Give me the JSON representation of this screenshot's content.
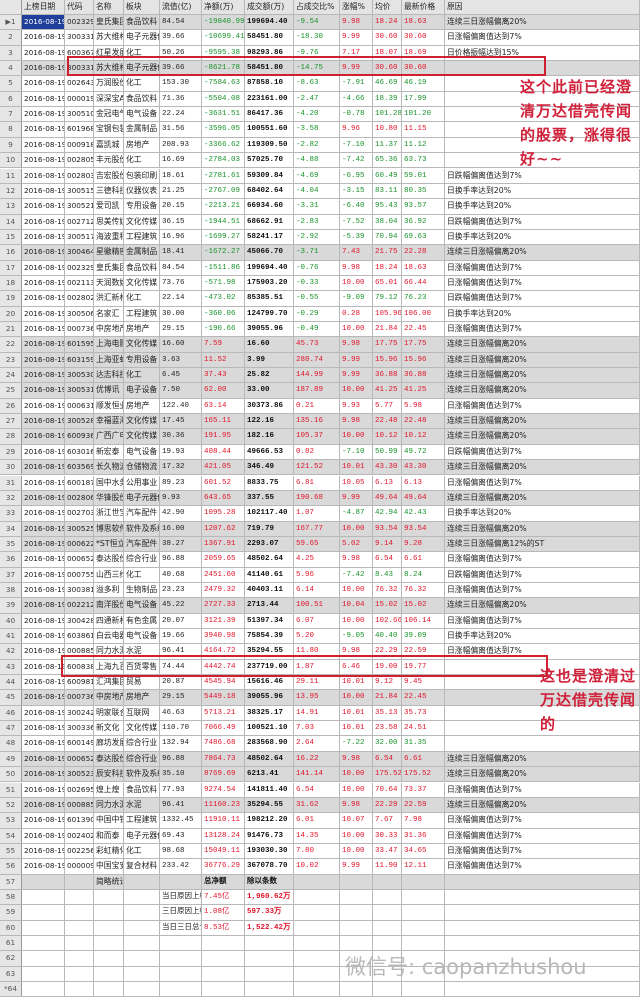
{
  "colors": {
    "positive": "#e0142a",
    "negative": "#18922a",
    "annotation": "#d0203a",
    "selected_row": "#d9d9d9"
  },
  "header": [
    "",
    "上榜日期",
    "代码",
    "名称",
    "板块",
    "流值(亿)",
    "净额(万)",
    "成交额(万)",
    "占成交比%",
    "涨幅%",
    "均价",
    "最新价格",
    "原因"
  ],
  "rows": [
    [
      "▶1",
      "2016-08-19",
      "002329",
      "皇氏集团",
      "食品饮料",
      "84.54",
      "-19040.99",
      "199694.40",
      "-9.54",
      "9.98",
      "18.24",
      "18.63",
      "连续三日涨幅偏离20%"
    ],
    [
      "2",
      "2016-08-19",
      "300331",
      "苏大维格",
      "电子元器件",
      "39.66",
      "-10699.41",
      "58451.80",
      "-18.30",
      "9.99",
      "30.60",
      "30.60",
      "日涨幅偏离值达到7%"
    ],
    [
      "3",
      "2016-08-19",
      "600367",
      "红星发展",
      "化工",
      "50.26",
      "-9595.38",
      "98293.86",
      "-9.76",
      "7.17",
      "18.07",
      "18.69",
      "日价格振幅达到15%"
    ],
    [
      "4",
      "2016-08-19",
      "300331",
      "苏大维格",
      "电子元器件",
      "39.66",
      "-8621.78",
      "58451.80",
      "-14.75",
      "9.99",
      "30.60",
      "30.60",
      ""
    ],
    [
      "5",
      "2016-08-19",
      "002643",
      "万润股份",
      "化工",
      "153.30",
      "-7584.63",
      "87858.10",
      "-8.63",
      "-7.91",
      "46.69",
      "46.19",
      ""
    ],
    [
      "6",
      "2016-08-19",
      "000019",
      "深深宝A",
      "食品饮料",
      "71.36",
      "-5504.08",
      "223161.00",
      "-2.47",
      "-4.66",
      "18.39",
      "17.99",
      ""
    ],
    [
      "7",
      "2016-08-19",
      "300510",
      "金冠电气",
      "电气设备",
      "22.24",
      "-3631.51",
      "86417.36",
      "-4.20",
      "-0.78",
      "101.28",
      "101.20",
      ""
    ],
    [
      "8",
      "2016-08-19",
      "601968",
      "宝钢包装",
      "金属制品",
      "31.56",
      "-3596.05",
      "100551.60",
      "-3.58",
      "9.96",
      "10.80",
      "11.15",
      ""
    ],
    [
      "9",
      "2016-08-19",
      "000918",
      "嘉凯城",
      "房地产",
      "208.93",
      "-3366.62",
      "119309.50",
      "-2.82",
      "-7.10",
      "11.37",
      "11.12",
      ""
    ],
    [
      "10",
      "2016-08-19",
      "002805",
      "丰元股份",
      "化工",
      "16.69",
      "-2784.03",
      "57025.70",
      "-4.88",
      "-7.42",
      "65.36",
      "63.73",
      ""
    ],
    [
      "11",
      "2016-08-19",
      "002803",
      "吉宏股份",
      "包装印刷",
      "18.61",
      "-2781.61",
      "59309.84",
      "-4.69",
      "-6.95",
      "60.49",
      "59.01",
      "日跌幅偏离值达到7%"
    ],
    [
      "12",
      "2016-08-19",
      "300515",
      "三德科技",
      "仪器仪表",
      "21.25",
      "-2767.09",
      "68402.64",
      "-4.04",
      "-3.15",
      "83.11",
      "80.35",
      "日换手率达到20%"
    ],
    [
      "13",
      "2016-08-19",
      "300521",
      "爱司凯",
      "专用设备",
      "20.15",
      "-2213.21",
      "66934.60",
      "-3.31",
      "-6.40",
      "95.43",
      "93.57",
      "日换手率达到20%"
    ],
    [
      "14",
      "2016-08-19",
      "002712",
      "思美传媒",
      "文化传媒",
      "36.15",
      "-1944.51",
      "68662.91",
      "-2.83",
      "-7.52",
      "38.04",
      "36.92",
      "日跌幅偏离值达到7%"
    ],
    [
      "15",
      "2016-08-19",
      "300517",
      "海波重科",
      "工程建筑",
      "16.96",
      "-1699.27",
      "58241.17",
      "-2.92",
      "-5.39",
      "70.94",
      "69.63",
      "日换手率达到20%"
    ],
    [
      "16",
      "2016-08-19",
      "300464",
      "星徽精密",
      "金属制品",
      "18.41",
      "-1672.27",
      "45066.70",
      "-3.71",
      "7.43",
      "21.75",
      "22.28",
      "连续三日涨幅偏离20%"
    ],
    [
      "17",
      "2016-08-19",
      "002329",
      "皇氏集团",
      "食品饮料",
      "84.54",
      "-1511.86",
      "199694.40",
      "-0.76",
      "9.98",
      "18.24",
      "18.63",
      "日涨幅偏离值达到7%"
    ],
    [
      "18",
      "2016-08-19",
      "002113",
      "天润数娱",
      "文化传媒",
      "73.76",
      "-571.98",
      "175903.20",
      "-0.33",
      "10.00",
      "65.01",
      "66.44",
      "日涨幅偏离值达到7%"
    ],
    [
      "19",
      "2016-08-19",
      "002802",
      "洪汇新材",
      "化工",
      "22.14",
      "-473.02",
      "85385.51",
      "-0.55",
      "-9.09",
      "79.12",
      "76.23",
      "日跌幅偏离值达到7%"
    ],
    [
      "20",
      "2016-08-19",
      "300506",
      "名家汇",
      "工程建筑",
      "30.00",
      "-360.06",
      "124799.70",
      "-0.29",
      "0.28",
      "105.96",
      "106.00",
      "日换手率达到20%"
    ],
    [
      "21",
      "2016-08-19",
      "000736",
      "中房地产",
      "房地产",
      "29.15",
      "-190.66",
      "39055.96",
      "-0.49",
      "10.00",
      "21.84",
      "22.45",
      "日涨幅偏离值达到7%"
    ],
    [
      "22",
      "2016-08-19",
      "601595",
      "上海电影",
      "文化传媒",
      "16.60",
      "7.59",
      "16.60",
      "45.73",
      "9.98",
      "17.75",
      "17.75",
      "连续三日涨幅偏离20%"
    ],
    [
      "23",
      "2016-08-19",
      "603159",
      "上海亚虹",
      "专用设备",
      "3.63",
      "11.52",
      "3.99",
      "288.74",
      "9.99",
      "15.96",
      "15.96",
      "连续三日涨幅偏离20%"
    ],
    [
      "24",
      "2016-08-19",
      "300530",
      "达志科技",
      "化工",
      "6.45",
      "37.43",
      "25.82",
      "144.99",
      "9.99",
      "36.88",
      "36.88",
      "连续三日涨幅偏离20%"
    ],
    [
      "25",
      "2016-08-19",
      "300531",
      "优博讯",
      "电子设备",
      "7.50",
      "62.00",
      "33.00",
      "187.89",
      "10.00",
      "41.25",
      "41.25",
      "连续三日涨幅偏离20%"
    ],
    [
      "26",
      "2016-08-19",
      "000631",
      "顺发恒业",
      "房地产",
      "122.40",
      "63.14",
      "30373.86",
      "0.21",
      "9.93",
      "5.77",
      "5.98",
      "日涨幅偏离值达到7%"
    ],
    [
      "27",
      "2016-08-19",
      "300528",
      "幸福蓝海",
      "文化传媒",
      "17.45",
      "165.11",
      "122.16",
      "135.16",
      "9.98",
      "22.48",
      "22.48",
      "连续三日涨幅偏离20%"
    ],
    [
      "28",
      "2016-08-19",
      "600936",
      "广西广电",
      "文化传媒",
      "30.36",
      "191.95",
      "182.16",
      "105.37",
      "10.00",
      "10.12",
      "10.12",
      "连续三日涨幅偏离20%"
    ],
    [
      "29",
      "2016-08-19",
      "603016",
      "新宏泰",
      "电气设备",
      "19.93",
      "408.44",
      "49666.53",
      "0.82",
      "-7.10",
      "50.99",
      "49.72",
      "日跌幅偏离值达到7%"
    ],
    [
      "30",
      "2016-08-19",
      "603569",
      "长久物流",
      "仓储物流",
      "17.32",
      "421.05",
      "346.49",
      "121.52",
      "10.01",
      "43.30",
      "43.30",
      "连续三日涨幅偏离20%"
    ],
    [
      "31",
      "2016-08-19",
      "600187",
      "国中水务",
      "公用事业",
      "89.23",
      "601.52",
      "8833.75",
      "6.81",
      "10.05",
      "6.13",
      "6.13",
      "日涨幅偏离值达到7%"
    ],
    [
      "32",
      "2016-08-19",
      "002806",
      "华锋股份",
      "电子元器件",
      "9.93",
      "643.65",
      "337.55",
      "190.68",
      "9.99",
      "49.64",
      "49.64",
      "连续三日涨幅偏离20%"
    ],
    [
      "33",
      "2016-08-19",
      "002703",
      "浙江世宝",
      "汽车配件",
      "42.90",
      "1095.28",
      "102117.40",
      "1.07",
      "-4.87",
      "42.94",
      "42.43",
      "日换手率达到20%"
    ],
    [
      "34",
      "2016-08-19",
      "300525",
      "博思软件",
      "软件及系统",
      "16.00",
      "1207.62",
      "719.79",
      "167.77",
      "10.00",
      "93.54",
      "93.54",
      "连续三日涨幅偏离20%"
    ],
    [
      "35",
      "2016-08-19",
      "000622",
      "*ST恒立",
      "汽车配件",
      "38.27",
      "1367.91",
      "2293.07",
      "59.65",
      "5.02",
      "9.14",
      "9.28",
      "连续三日涨幅偏离12%的ST"
    ],
    [
      "36",
      "2016-08-19",
      "000652",
      "泰达股份",
      "综合行业",
      "96.88",
      "2059.65",
      "48502.64",
      "4.25",
      "9.98",
      "6.54",
      "6.61",
      "日涨幅偏离值达到7%"
    ],
    [
      "37",
      "2016-08-19",
      "000755",
      "山西三维",
      "化工",
      "40.68",
      "2451.60",
      "41140.61",
      "5.96",
      "-7.42",
      "8.43",
      "8.24",
      "日跌幅偏离值达到7%"
    ],
    [
      "38",
      "2016-08-19",
      "300381",
      "溢多利",
      "生物制品",
      "23.23",
      "2479.32",
      "40403.11",
      "6.14",
      "10.00",
      "76.32",
      "76.32",
      "日涨幅偏离值达到7%"
    ],
    [
      "39",
      "2016-08-19",
      "002212",
      "南洋股份",
      "电气设备",
      "45.22",
      "2727.33",
      "2713.44",
      "100.51",
      "10.04",
      "15.02",
      "15.02",
      "连续三日涨幅偏离20%"
    ],
    [
      "40",
      "2016-08-19",
      "300428",
      "四通新材",
      "有色金属",
      "20.07",
      "3121.39",
      "51397.34",
      "6.07",
      "10.00",
      "102.66",
      "106.14",
      "日涨幅偏离值达到7%"
    ],
    [
      "41",
      "2016-08-19",
      "603861",
      "白云电器",
      "电气设备",
      "19.66",
      "3940.98",
      "75854.39",
      "5.20",
      "-9.05",
      "40.40",
      "39.09",
      "日换手率达到20%"
    ],
    [
      "42",
      "2016-08-19",
      "000885",
      "同力水泥",
      "水泥",
      "96.41",
      "4164.72",
      "35294.55",
      "11.80",
      "9.98",
      "22.29",
      "22.59",
      "日涨幅偏离值达到7%"
    ],
    [
      "43",
      "2016-08-19",
      "600838",
      "上海九百",
      "百货零售",
      "74.44",
      "4442.74",
      "237719.00",
      "1.87",
      "6.46",
      "19.00",
      "19.77",
      ""
    ],
    [
      "44",
      "2016-08-19",
      "600981",
      "汇鸿集团",
      "贸易",
      "20.87",
      "4545.94",
      "15616.46",
      "29.11",
      "10.01",
      "9.12",
      "9.45",
      ""
    ],
    [
      "45",
      "2016-08-19",
      "000736",
      "中房地产",
      "房地产",
      "29.15",
      "5449.18",
      "39055.96",
      "13.95",
      "10.00",
      "21.84",
      "22.45",
      ""
    ],
    [
      "46",
      "2016-08-19",
      "300242",
      "明家联合",
      "互联网",
      "46.63",
      "5713.21",
      "38325.17",
      "14.91",
      "10.01",
      "35.13",
      "35.73",
      ""
    ],
    [
      "47",
      "2016-08-19",
      "300336",
      "新文化",
      "文化传媒",
      "110.70",
      "7066.49",
      "100521.10",
      "7.03",
      "10.01",
      "23.58",
      "24.51",
      ""
    ],
    [
      "48",
      "2016-08-19",
      "600149",
      "廊坊发展",
      "综合行业",
      "132.94",
      "7486.68",
      "283568.90",
      "2.64",
      "-7.22",
      "32.00",
      "31.35",
      ""
    ],
    [
      "49",
      "2016-08-19",
      "000652",
      "泰达股份",
      "综合行业",
      "96.88",
      "7864.73",
      "48502.64",
      "16.22",
      "9.98",
      "6.54",
      "6.61",
      "连续三日涨幅偏离20%"
    ],
    [
      "50",
      "2016-08-19",
      "300523",
      "辰安科技",
      "软件及系统",
      "35.10",
      "8769.69",
      "6213.41",
      "141.14",
      "10.00",
      "175.52",
      "175.52",
      "连续三日涨幅偏离20%"
    ],
    [
      "51",
      "2016-08-19",
      "002695",
      "煌上煌",
      "食品饮料",
      "77.93",
      "9274.54",
      "141811.40",
      "6.54",
      "10.00",
      "70.64",
      "73.37",
      "日涨幅偏离值达到7%"
    ],
    [
      "52",
      "2016-08-19",
      "000885",
      "同力水泥",
      "水泥",
      "96.41",
      "11160.23",
      "35294.55",
      "31.62",
      "9.98",
      "22.29",
      "22.59",
      "连续三日涨幅偏离20%"
    ],
    [
      "53",
      "2016-08-19",
      "601390",
      "中国中铁",
      "工程建筑",
      "1332.45",
      "11910.11",
      "198212.20",
      "6.01",
      "10.07",
      "7.67",
      "7.98",
      "日涨幅偏离值达到7%"
    ],
    [
      "54",
      "2016-08-19",
      "002402",
      "和而泰",
      "电子元器件",
      "69.43",
      "13128.24",
      "91476.73",
      "14.35",
      "10.00",
      "30.33",
      "31.36",
      "日涨幅偏离值达到7%"
    ],
    [
      "55",
      "2016-08-19",
      "002256",
      "彩虹精化",
      "化工",
      "98.68",
      "15049.11",
      "193030.30",
      "7.80",
      "10.00",
      "33.47",
      "34.65",
      "日涨幅偏离值达到7%"
    ],
    [
      "56",
      "2016-08-19",
      "000009",
      "中国宝安",
      "复合材料",
      "233.42",
      "36776.29",
      "367078.70",
      "10.02",
      "9.99",
      "11.90",
      "12.11",
      "日涨幅偏离值达到7%"
    ],
    [
      "57",
      "",
      "",
      "简略统计",
      "",
      "",
      "总净额",
      "除以条数",
      "",
      "",
      "",
      "",
      ""
    ],
    [
      "58",
      "",
      "",
      "",
      "",
      "当日原因上榜",
      "7.45亿",
      "1,960.62万",
      "",
      "",
      "",
      "",
      ""
    ],
    [
      "59",
      "",
      "",
      "",
      "",
      "三日原因上榜",
      "1.08亿",
      "597.33万",
      "",
      "",
      "",
      "",
      ""
    ],
    [
      "60",
      "",
      "",
      "",
      "",
      "当日三日总计",
      "8.53亿",
      "1,522.42万",
      "",
      "",
      "",
      "",
      ""
    ],
    [
      "61",
      "",
      "",
      "",
      "",
      "",
      "",
      "",
      "",
      "",
      "",
      "",
      ""
    ],
    [
      "62",
      "",
      "",
      "",
      "",
      "",
      "",
      "",
      "",
      "",
      "",
      "",
      ""
    ],
    [
      "63",
      "",
      "",
      "",
      "",
      "",
      "",
      "",
      "",
      "",
      "",
      "",
      ""
    ],
    [
      "*64",
      "",
      "",
      "",
      "",
      "",
      "",
      "",
      "",
      "",
      "",
      "",
      ""
    ]
  ],
  "highlighted_rows": [
    1,
    4,
    16,
    22,
    23,
    24,
    25,
    27,
    28,
    30,
    32,
    34,
    35,
    39,
    45,
    49,
    50,
    52,
    57
  ],
  "annotations": [
    "这个此前已经澄清万达借壳传闻的股票，涨得很好~~",
    "这也是澄清过万达借壳传闻的"
  ],
  "watermark": "微信号: caopanzhushou"
}
